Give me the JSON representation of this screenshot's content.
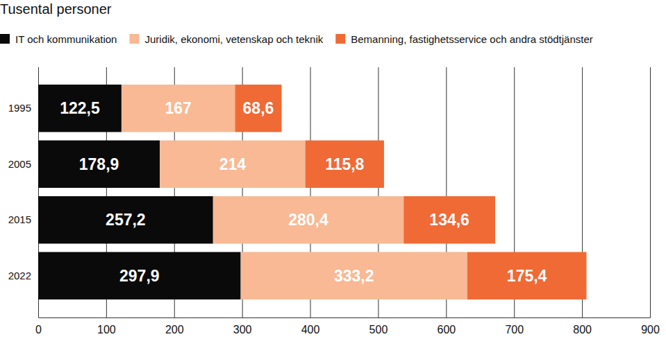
{
  "chart_data": {
    "type": "bar",
    "orientation": "horizontal",
    "stacked": true,
    "data_labels": true,
    "subtitle": "Tusental personer",
    "categories": [
      "1995",
      "2005",
      "2015",
      "2022"
    ],
    "series": [
      {
        "name": "IT och kommunikation",
        "color": "#0a0a0a",
        "values": [
          122.5,
          178.9,
          257.2,
          297.9
        ],
        "value_labels": [
          "122,5",
          "178,9",
          "257,2",
          "297,9"
        ]
      },
      {
        "name": "Juridik, ekonomi, vetenskap och teknik",
        "color": "#f8b994",
        "values": [
          167,
          214,
          280.4,
          333.2
        ],
        "value_labels": [
          "167",
          "214",
          "280,4",
          "333,2"
        ]
      },
      {
        "name": "Bemanning, fastighetsservice och andra stödtjänster",
        "color": "#f06a35",
        "values": [
          68.6,
          115.8,
          134.6,
          175.4
        ],
        "value_labels": [
          "68,6",
          "115,8",
          "134,6",
          "175,4"
        ]
      }
    ],
    "xlim": [
      0,
      900
    ],
    "xticks": [
      0,
      100,
      200,
      300,
      400,
      500,
      600,
      700,
      800,
      900
    ],
    "grid": true,
    "legend": "top"
  }
}
